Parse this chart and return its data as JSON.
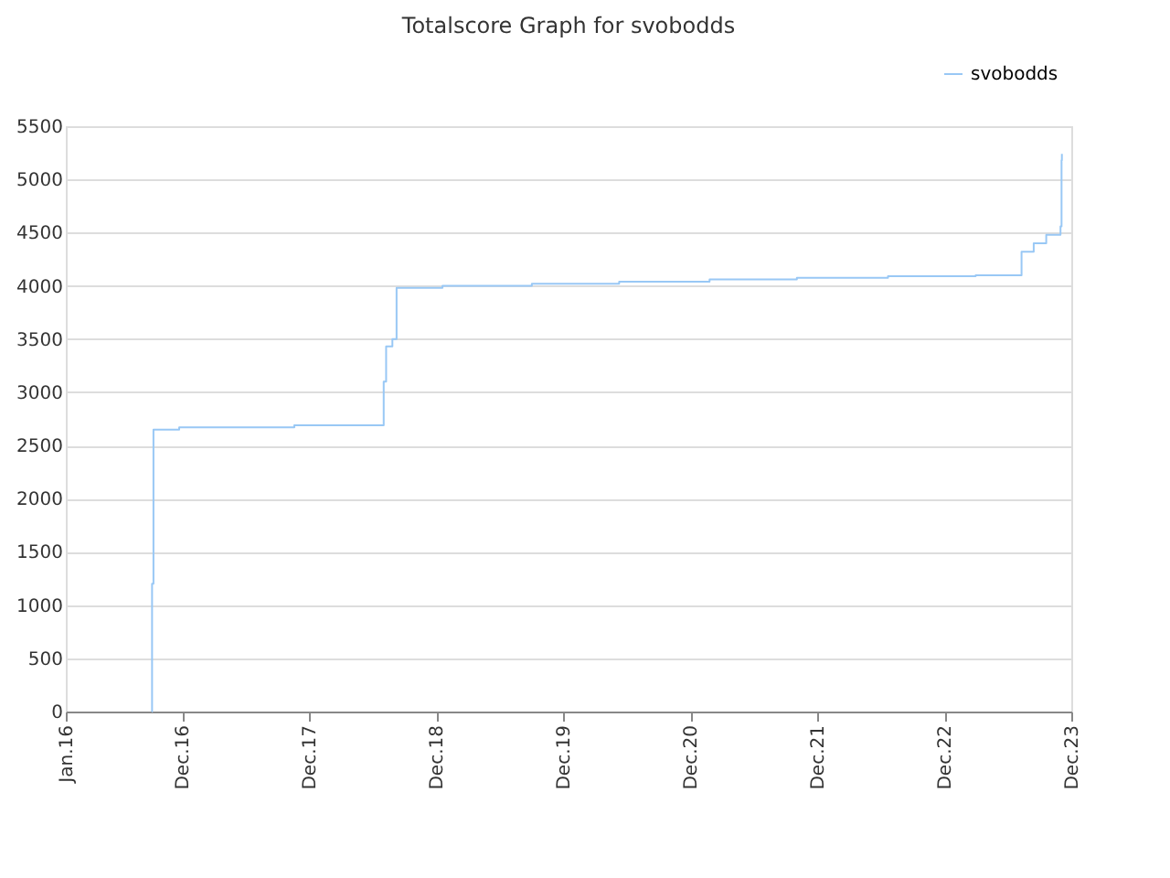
{
  "chart_data": {
    "type": "step",
    "title": "Totalscore Graph for svobodds",
    "x": [
      "2016-09-04",
      "2016-09-05",
      "2016-09-09",
      "2016-11-22",
      "2017-10-19",
      "2018-07-03",
      "2018-07-10",
      "2018-07-28",
      "2018-08-09",
      "2018-12-19",
      "2019-09-02",
      "2020-05-10",
      "2021-01-25",
      "2021-10-03",
      "2022-06-22",
      "2023-03-01",
      "2023-07-11",
      "2023-08-15",
      "2023-09-20",
      "2023-10-31",
      "2023-11-03",
      "2023-11-04"
    ],
    "series": [
      {
        "name": "svobodds",
        "color": "#99c8f5",
        "values": [
          0,
          1200,
          2650,
          2670,
          2690,
          3100,
          3430,
          3500,
          3980,
          4000,
          4020,
          4040,
          4060,
          4075,
          4090,
          4100,
          4320,
          4400,
          4480,
          4560,
          5180,
          5240
        ]
      }
    ],
    "xlim": [
      "2016-01-01",
      "2023-12-01"
    ],
    "xticks": [
      {
        "value": "2016-01-01",
        "label": "Jan.16"
      },
      {
        "value": "2016-12-01",
        "label": "Dec.16"
      },
      {
        "value": "2017-12-01",
        "label": "Dec.17"
      },
      {
        "value": "2018-12-01",
        "label": "Dec.18"
      },
      {
        "value": "2019-12-01",
        "label": "Dec.19"
      },
      {
        "value": "2020-12-01",
        "label": "Dec.20"
      },
      {
        "value": "2021-12-01",
        "label": "Dec.21"
      },
      {
        "value": "2022-12-01",
        "label": "Dec.22"
      },
      {
        "value": "2023-12-01",
        "label": "Dec.23"
      }
    ],
    "ylim": [
      0,
      5500
    ],
    "yticks": [
      0,
      500,
      1000,
      1500,
      2000,
      2500,
      3000,
      3500,
      4000,
      4500,
      5000,
      5500
    ],
    "grid": "y",
    "legend": "top right"
  }
}
